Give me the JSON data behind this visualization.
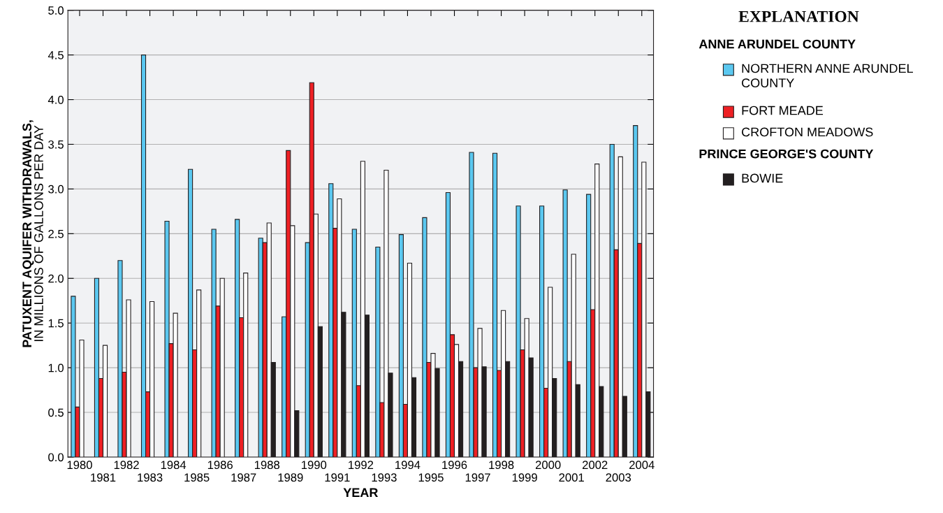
{
  "chart_data": {
    "type": "bar",
    "categories": [
      "1980",
      "1981",
      "1982",
      "1983",
      "1984",
      "1985",
      "1986",
      "1987",
      "1988",
      "1989",
      "1990",
      "1991",
      "1992",
      "1993",
      "1994",
      "1995",
      "1996",
      "1997",
      "1998",
      "1999",
      "2000",
      "2001",
      "2002",
      "2003",
      "2004"
    ],
    "xlabel": "YEAR",
    "ylabel": "PATUXENT AQUIFER WITHDRAWALS,\nIN MILLIONS OF GALLONS PER DAY",
    "legend_title": "EXPLANATION",
    "annotations": [
      "ANNE ARUNDEL COUNTY",
      "PRINCE GEORGE'S COUNTY"
    ],
    "series": [
      {
        "name": "NORTHERN ANNE ARUNDEL\nCOUNTY",
        "color": "#5bc8f0",
        "values": [
          1.8,
          2.0,
          2.2,
          4.5,
          2.64,
          3.22,
          2.55,
          2.66,
          2.45,
          1.57,
          2.4,
          3.06,
          2.55,
          2.35,
          2.49,
          2.68,
          2.96,
          3.41,
          3.4,
          2.81,
          2.81,
          2.99,
          2.94,
          3.5,
          3.71
        ]
      },
      {
        "name": "FORT MEADE",
        "color": "#ee2024",
        "values": [
          0.56,
          0.88,
          0.95,
          0.73,
          1.27,
          1.2,
          1.69,
          1.56,
          2.4,
          3.43,
          4.19,
          2.56,
          0.8,
          0.61,
          0.59,
          1.06,
          1.37,
          1.0,
          0.97,
          1.2,
          0.77,
          1.07,
          1.65,
          2.32,
          2.39
        ]
      },
      {
        "name": "CROFTON MEADOWS",
        "color": "#ffffff",
        "values": [
          1.31,
          1.25,
          1.76,
          1.74,
          1.61,
          1.87,
          2.0,
          2.06,
          2.62,
          2.59,
          2.72,
          2.89,
          3.31,
          3.21,
          2.17,
          1.16,
          1.26,
          1.44,
          1.64,
          1.55,
          1.9,
          2.27,
          3.28,
          3.36,
          3.3
        ]
      },
      {
        "name": "BOWIE",
        "color": "#231f20",
        "values": [
          null,
          null,
          null,
          null,
          null,
          null,
          null,
          null,
          1.06,
          0.52,
          1.46,
          1.62,
          1.59,
          0.94,
          0.89,
          0.99,
          1.07,
          1.01,
          1.07,
          1.11,
          0.88,
          0.81,
          0.79,
          0.68,
          0.73
        ]
      }
    ],
    "ylim": [
      0,
      5
    ],
    "yticks": [
      {
        "value": 0,
        "label": "0.0"
      },
      {
        "value": 0.5,
        "label": "0.5"
      },
      {
        "value": 1,
        "label": "1.0"
      },
      {
        "value": 1.5,
        "label": "1.5"
      },
      {
        "value": 2,
        "label": "2.0"
      },
      {
        "value": 2.5,
        "label": "2.5"
      },
      {
        "value": 3,
        "label": "3.0"
      },
      {
        "value": 3.5,
        "label": "3.5"
      },
      {
        "value": 4,
        "label": "4.0"
      },
      {
        "value": 4.5,
        "label": "4.5"
      },
      {
        "value": 5,
        "label": "5.0"
      }
    ],
    "grid": "y",
    "legend": "right"
  }
}
